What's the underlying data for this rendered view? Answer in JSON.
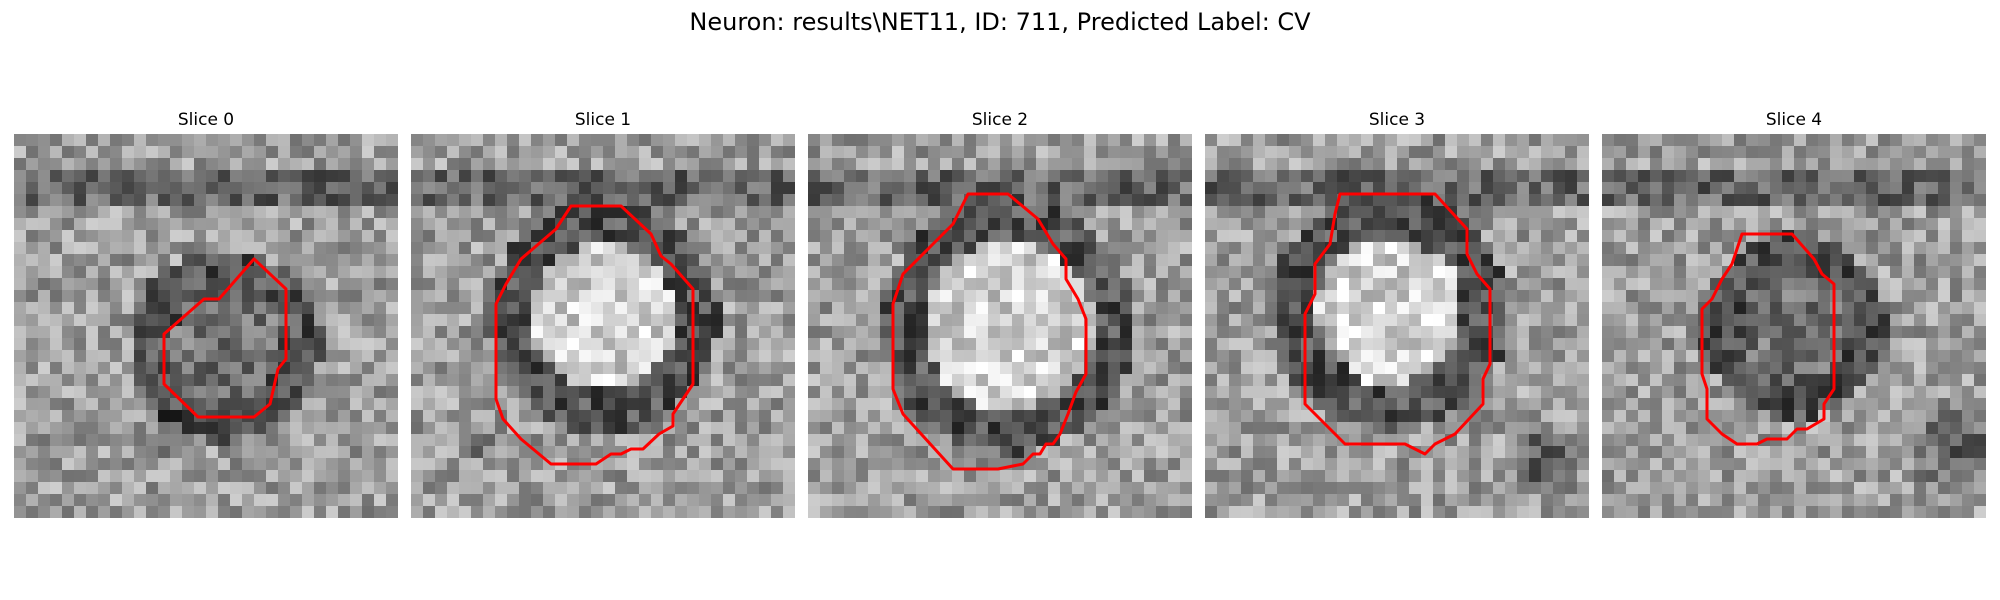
{
  "figure": {
    "title": "Neuron: results\\NET11, ID: 711, Predicted Label: CV"
  },
  "contour_color": "#ff0000",
  "panels": [
    {
      "title": "Slice 0",
      "image": "grayscale-microscopy-patch",
      "contour": "red-outline"
    },
    {
      "title": "Slice 1",
      "image": "grayscale-microscopy-patch",
      "contour": "red-outline"
    },
    {
      "title": "Slice 2",
      "image": "grayscale-microscopy-patch",
      "contour": "red-outline"
    },
    {
      "title": "Slice 3",
      "image": "grayscale-microscopy-patch",
      "contour": "red-outline"
    },
    {
      "title": "Slice 4",
      "image": "grayscale-microscopy-patch",
      "contour": "red-outline"
    }
  ]
}
